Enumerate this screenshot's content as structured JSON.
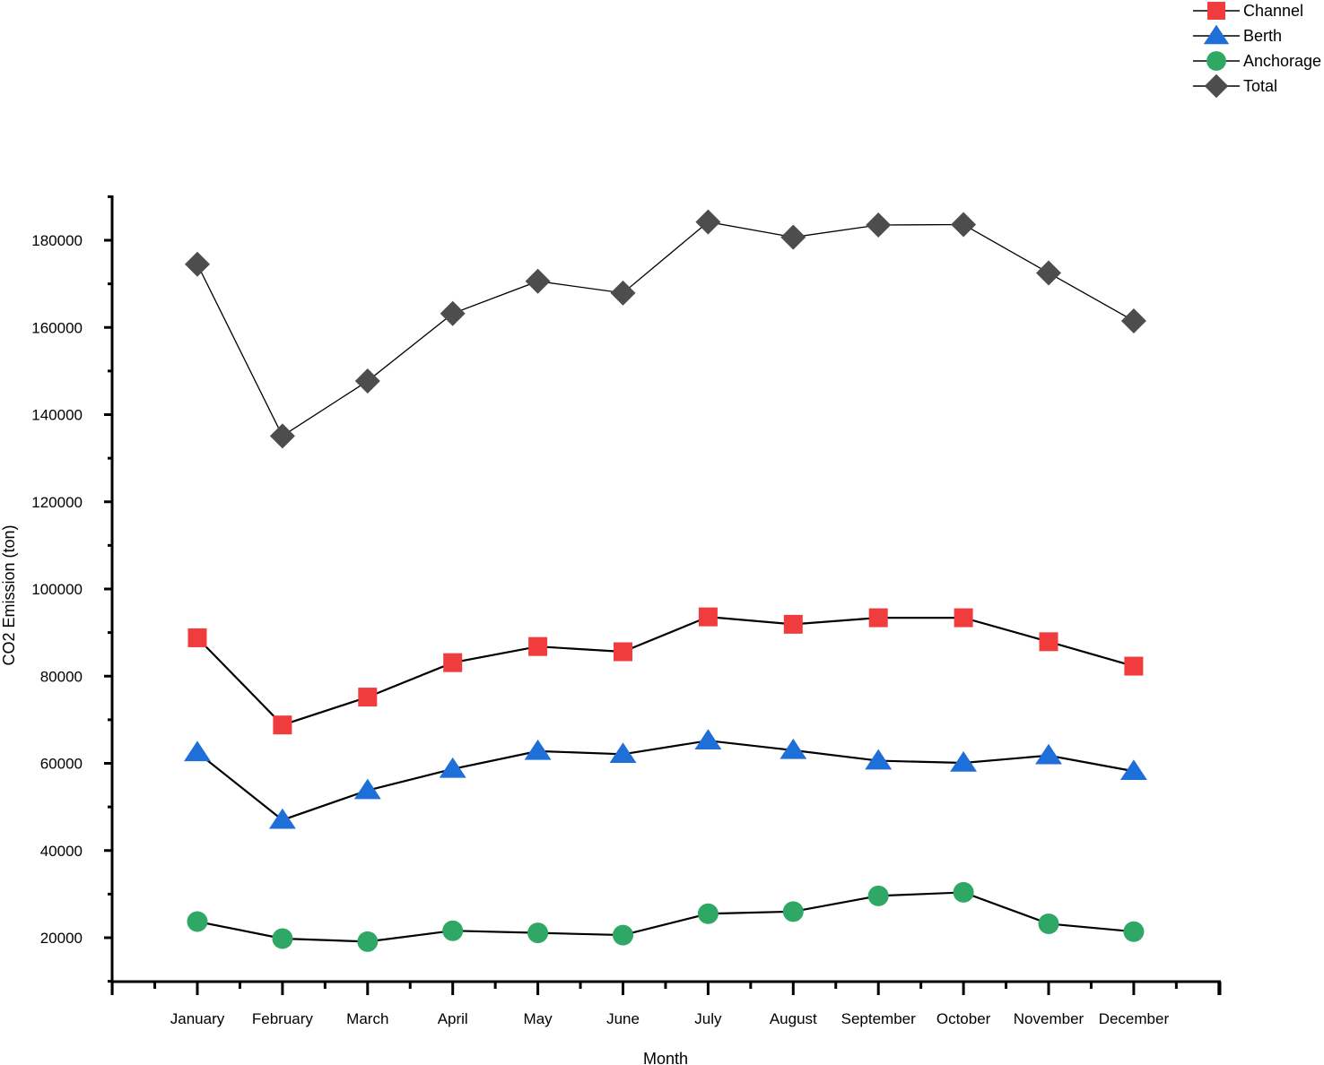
{
  "chart_data": {
    "type": "line",
    "xlabel": "Month",
    "ylabel": "CO2 Emission (ton)",
    "categories": [
      "January",
      "February",
      "March",
      "April",
      "May",
      "June",
      "July",
      "August",
      "September",
      "October",
      "November",
      "December"
    ],
    "ylim": [
      10000,
      190000
    ],
    "yticks": [
      20000,
      40000,
      60000,
      80000,
      100000,
      120000,
      140000,
      160000,
      180000
    ],
    "grid": false,
    "legend_position": "top-right",
    "series": [
      {
        "name": "Channel",
        "marker": "square",
        "color": "#f03c3c",
        "values": [
          88800,
          68800,
          75200,
          83100,
          86800,
          85600,
          93600,
          91900,
          93400,
          93400,
          87900,
          82300
        ]
      },
      {
        "name": "Berth",
        "marker": "triangle",
        "color": "#1f6fd8",
        "values": [
          62500,
          47000,
          53800,
          58700,
          62800,
          62100,
          65200,
          63000,
          60600,
          60100,
          61800,
          58200
        ]
      },
      {
        "name": "Anchorage",
        "marker": "circle",
        "color": "#2fa866",
        "values": [
          23700,
          19800,
          19100,
          21600,
          21100,
          20600,
          25500,
          26000,
          29600,
          30400,
          23200,
          21400
        ]
      },
      {
        "name": "Total",
        "marker": "diamond",
        "color": "#4d4d4d",
        "values": [
          174500,
          135100,
          147700,
          163200,
          170600,
          167900,
          184200,
          180700,
          183500,
          183600,
          172500,
          161500
        ]
      }
    ]
  }
}
